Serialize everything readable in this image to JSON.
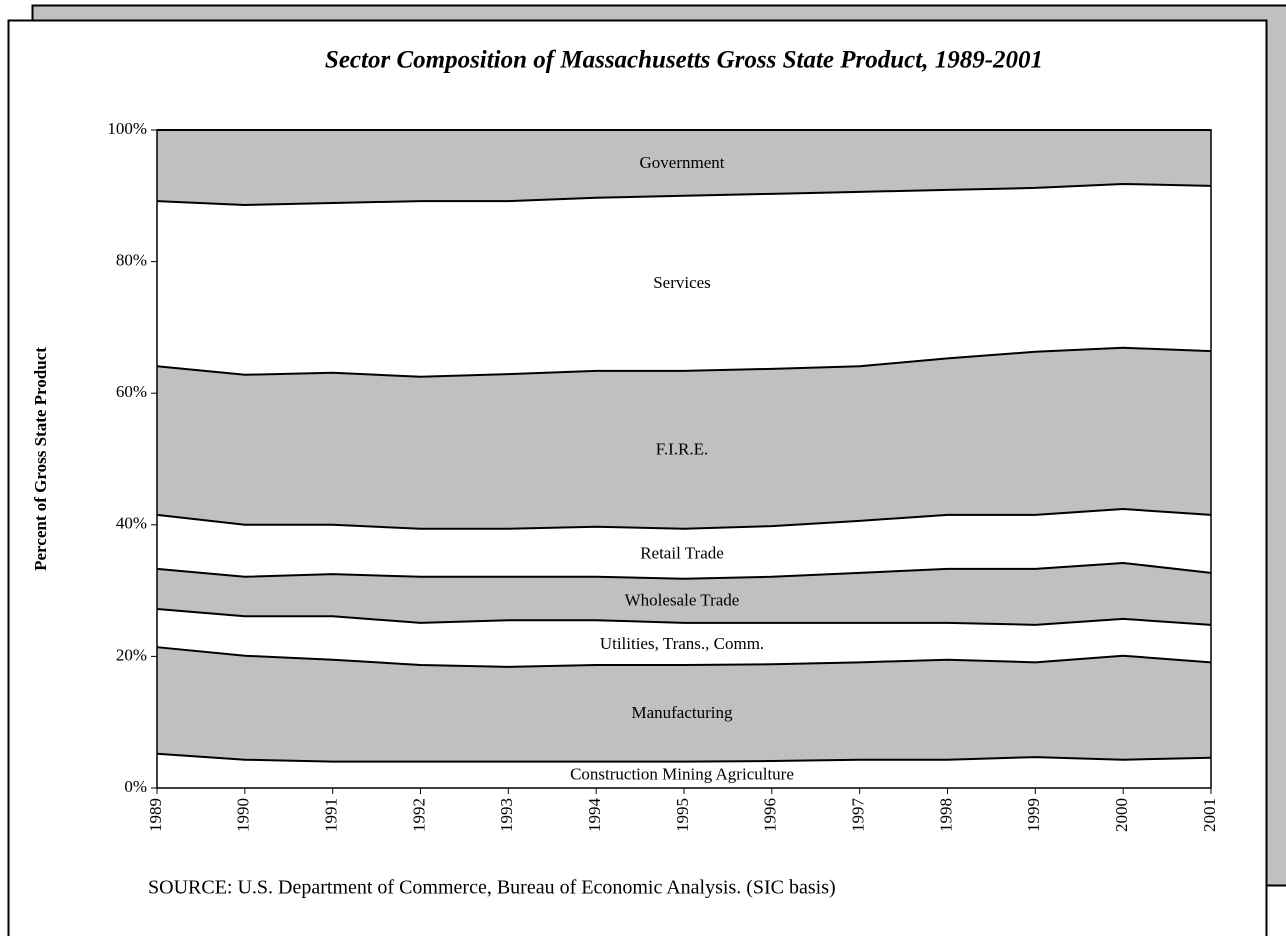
{
  "chart_data": {
    "type": "stacked-area",
    "title": "Sector Composition of Massachusetts Gross State Product, 1989-2001",
    "y_label": "Percent of Gross State Product",
    "note": "SOURCE: U.S. Department of Commerce, Bureau of Economic Analysis.  (SIC basis)",
    "categories": [
      "1989",
      "1990",
      "1991",
      "1992",
      "1993",
      "1994",
      "1995",
      "1996",
      "1997",
      "1998",
      "1999",
      "2000",
      "2001"
    ],
    "ylim": [
      0,
      100
    ],
    "yticks": [
      {
        "value": 0,
        "label": "0%"
      },
      {
        "value": 20,
        "label": "20%"
      },
      {
        "value": 40,
        "label": "40%"
      },
      {
        "value": 60,
        "label": "60%"
      },
      {
        "value": 80,
        "label": "80%"
      },
      {
        "value": 100,
        "label": "100%"
      }
    ],
    "series": [
      {
        "name": "Construction  Mining Agriculture",
        "color": "#ffffff",
        "values": [
          5.2,
          4.3,
          4.0,
          4.0,
          4.0,
          4.0,
          4.0,
          4.1,
          4.3,
          4.3,
          4.7,
          4.3,
          4.6
        ]
      },
      {
        "name": "Manufacturing",
        "color": "#c0c0c0",
        "values": [
          16.2,
          15.8,
          15.5,
          14.7,
          14.4,
          14.7,
          14.7,
          14.7,
          14.8,
          15.2,
          14.4,
          15.8,
          14.5
        ]
      },
      {
        "name": "Utilities, Trans., Comm.",
        "color": "#ffffff",
        "values": [
          5.8,
          6.0,
          6.6,
          6.4,
          7.1,
          6.8,
          6.4,
          6.3,
          6.0,
          5.6,
          5.7,
          5.6,
          5.7
        ]
      },
      {
        "name": "Wholesale Trade",
        "color": "#c0c0c0",
        "values": [
          6.1,
          6.0,
          6.4,
          7.0,
          6.6,
          6.6,
          6.7,
          7.0,
          7.6,
          8.2,
          8.5,
          8.5,
          7.9
        ]
      },
      {
        "name": "Retail Trade",
        "color": "#ffffff",
        "values": [
          8.2,
          7.9,
          7.5,
          7.3,
          7.3,
          7.6,
          7.6,
          7.7,
          7.9,
          8.2,
          8.2,
          8.2,
          8.8
        ]
      },
      {
        "name": "F.I.R.E.",
        "color": "#c0c0c0",
        "values": [
          22.6,
          22.8,
          23.1,
          23.1,
          23.5,
          23.7,
          24.0,
          23.9,
          23.5,
          23.8,
          24.8,
          24.5,
          24.9
        ]
      },
      {
        "name": "Services",
        "color": "#ffffff",
        "values": [
          25.1,
          25.8,
          25.8,
          26.7,
          26.3,
          26.3,
          26.6,
          26.6,
          26.5,
          25.6,
          24.9,
          24.9,
          25.1
        ]
      },
      {
        "name": "Government",
        "color": "#c0c0c0",
        "values": [
          10.8,
          11.4,
          11.1,
          10.8,
          10.8,
          10.3,
          10.0,
          9.7,
          9.4,
          9.1,
          8.8,
          8.2,
          8.5
        ]
      }
    ]
  }
}
